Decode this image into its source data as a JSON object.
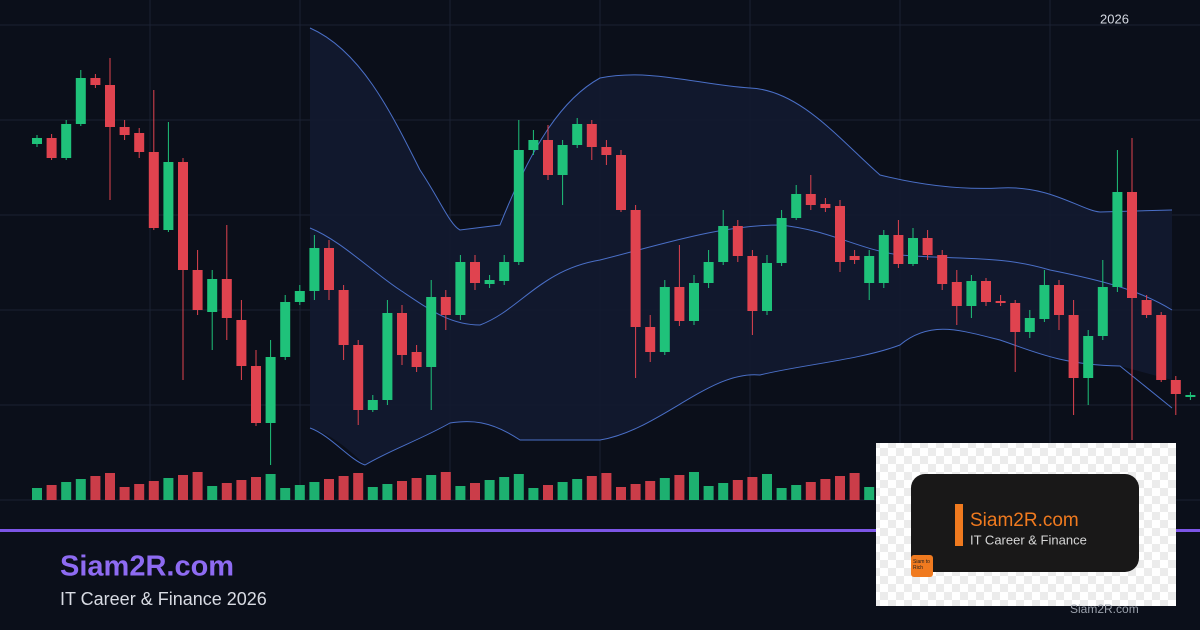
{
  "header": {
    "year": "2026"
  },
  "brand": {
    "title": "Siam2R.com",
    "subtitle": "IT Career & Finance 2026"
  },
  "card": {
    "title": "Siam2R.com",
    "subtitle": "IT Career & Finance",
    "logo": "Siam to Rich",
    "watermark": "Siam2R.com"
  }
}
